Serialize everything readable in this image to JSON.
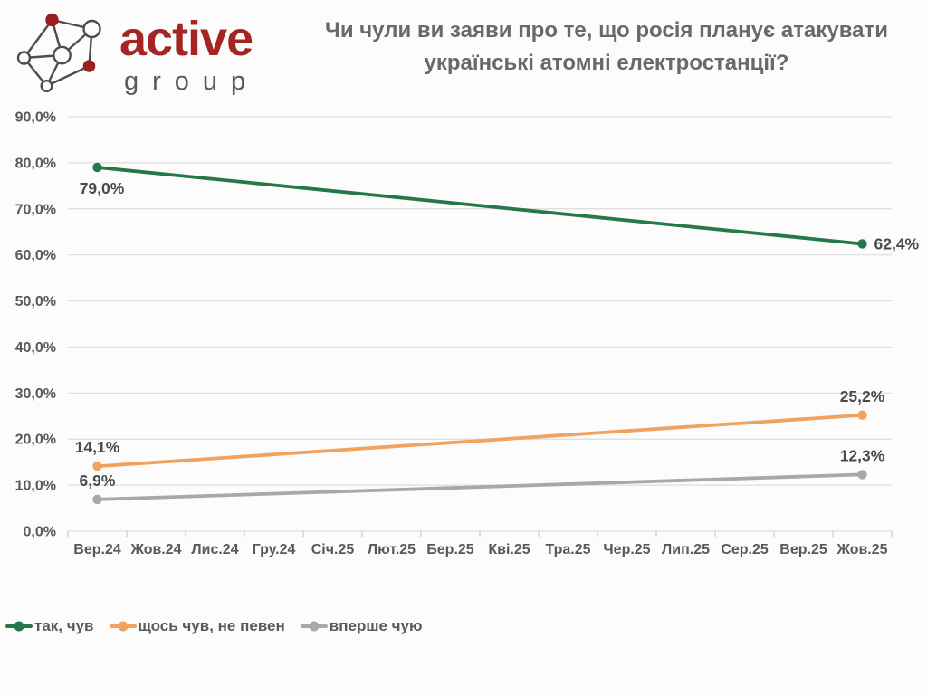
{
  "logo": {
    "brand": "active",
    "sub": "group"
  },
  "header": {
    "title_line1": "Чи чули ви заяви про те, що росія планує атакувати",
    "title_line2": "українські атомні електростанції?"
  },
  "chart_data": {
    "type": "line",
    "title": "Чи чули ви заяви про те, що росія планує атакувати українські атомні електростанції?",
    "categories": [
      "Вер.24",
      "Жов.24",
      "Лис.24",
      "Гру.24",
      "Січ.25",
      "Лют.25",
      "Бер.25",
      "Кві.25",
      "Тра.25",
      "Чер.25",
      "Лип.25",
      "Сер.25",
      "Вер.25",
      "Жов.25"
    ],
    "series": [
      {
        "name": "так, чув",
        "color": "#26774A",
        "points": [
          {
            "category": "Вер.24",
            "value": 79.0,
            "label": "79,0%",
            "label_pos": "below"
          },
          {
            "category": "Жов.25",
            "value": 62.4,
            "label": "62,4%",
            "label_pos": "right"
          }
        ]
      },
      {
        "name": "щось чув, не певен",
        "color": "#F0A35E",
        "points": [
          {
            "category": "Вер.24",
            "value": 14.1,
            "label": "14,1%",
            "label_pos": "above"
          },
          {
            "category": "Жов.25",
            "value": 25.2,
            "label": "25,2%",
            "label_pos": "above"
          }
        ]
      },
      {
        "name": "вперше чую",
        "color": "#A8A8A8",
        "points": [
          {
            "category": "Вер.24",
            "value": 6.9,
            "label": "6,9%",
            "label_pos": "above"
          },
          {
            "category": "Жов.25",
            "value": 12.3,
            "label": "12,3%",
            "label_pos": "above"
          }
        ]
      }
    ],
    "ylim": [
      0,
      90
    ],
    "ytick_step": 10,
    "ytick_labels": [
      "0,0%",
      "10,0%",
      "20,0%",
      "30,0%",
      "40,0%",
      "50,0%",
      "60,0%",
      "70,0%",
      "80,0%",
      "90,0%"
    ],
    "grid": true,
    "grid_color": "#DDDDDD",
    "axis_color": "#C9C9C9",
    "text_color": "#595959",
    "legend_position": "bottom-left"
  }
}
